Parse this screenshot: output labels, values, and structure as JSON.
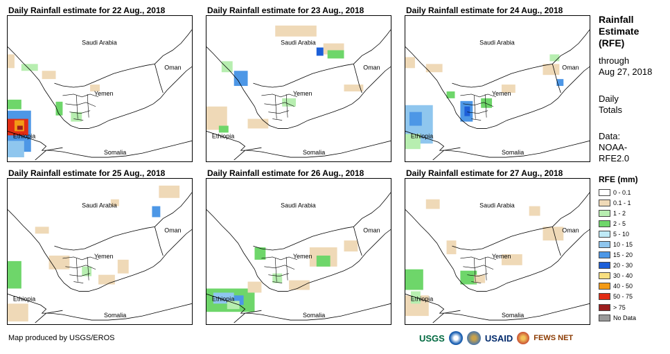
{
  "panels": [
    {
      "title": "Daily Rainfall estimate for 22 Aug., 2018"
    },
    {
      "title": "Daily Rainfall estimate for 23 Aug., 2018"
    },
    {
      "title": "Daily Rainfall estimate for 24 Aug., 2018"
    },
    {
      "title": "Daily Rainfall estimate for 25 Aug., 2018"
    },
    {
      "title": "Daily Rainfall estimate for 26 Aug., 2018"
    },
    {
      "title": "Daily Rainfall estimate for 27 Aug., 2018"
    }
  ],
  "map_labels": {
    "saudi": "Saudi Arabia",
    "oman": "Oman",
    "yemen": "Yemen",
    "ethiopia": "Ethiopia",
    "somalia": "Somalia"
  },
  "legend": {
    "title_lines": [
      "Rainfall",
      "Estimate",
      "(RFE)"
    ],
    "through": "through",
    "date": "Aug 27, 2018",
    "daily": "Daily",
    "totals": "Totals",
    "data_label": "Data:",
    "data_src1": "NOAA-",
    "data_src2": "RFE2.0",
    "rfe_header": "RFE (mm)",
    "classes": [
      {
        "label": "0 - 0.1",
        "color": "#ffffff"
      },
      {
        "label": "0.1 - 1",
        "color": "#efd9b7"
      },
      {
        "label": "1 - 2",
        "color": "#b7eeb0"
      },
      {
        "label": "2 - 5",
        "color": "#6ed66a"
      },
      {
        "label": "5 - 10",
        "color": "#bfeaf6"
      },
      {
        "label": "10 - 15",
        "color": "#8fc6ee"
      },
      {
        "label": "15 - 20",
        "color": "#4d97e6"
      },
      {
        "label": "20 - 30",
        "color": "#1c5fd8"
      },
      {
        "label": "30 - 40",
        "color": "#f8df80"
      },
      {
        "label": "40 - 50",
        "color": "#f39a16"
      },
      {
        "label": "50 - 75",
        "color": "#e12c15"
      },
      {
        "label": "> 75",
        "color": "#9b1e1e"
      },
      {
        "label": "No Data",
        "color": "#999999"
      }
    ]
  },
  "footer": "Map produced by USGS/EROS",
  "logos": {
    "usgs": "USGS",
    "usaid": "USAID",
    "fews": "FEWS NET"
  }
}
